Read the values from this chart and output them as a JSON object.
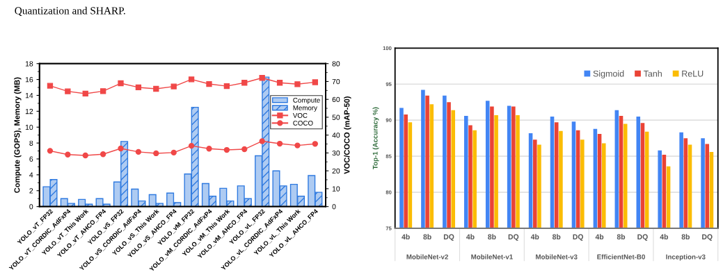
{
  "chart_data": [
    {
      "type": "bar",
      "ylabel": "Compute (GOPS), Memory (MB)",
      "y2label": "VOC/COCO (mAP-50)",
      "annotations": [
        "Quantization and SHARP."
      ],
      "categories": [
        "YOLO_vT_FP32",
        "YOLO_vT_CORDIC_AdFxP4",
        "YOLO_vT_This Work",
        "YOLO_vT_AHCO_FP4",
        "YOLO_vS_FP32",
        "YOLO_vS_CORDIC_AdFxP4",
        "YOLO_vS_This Work",
        "YOLO_vS_AHCO_FP4",
        "YOLO_vM_FP32",
        "YOLO_vM_CORDIC_AdFxP4",
        "YOLO_vM_This Work",
        "YOLO_vM_AHCO_FP4",
        "YOLO_vL_FP32",
        "YOLO_vL_CORDIC_AdFxP4",
        "YOLO_vL_This Work",
        "YOLO_vL_AHCO_FP4"
      ],
      "series": [
        {
          "name": "Compute",
          "type": "bar",
          "color": "#aecbf2",
          "values": [
            2.5,
            1.0,
            0.9,
            1.0,
            3.1,
            2.2,
            1.5,
            1.7,
            4.1,
            2.9,
            2.3,
            2.6,
            6.4,
            4.5,
            2.8,
            3.9
          ]
        },
        {
          "name": "Memory",
          "type": "bar",
          "color": "#2f7ae0",
          "values": [
            3.4,
            0.4,
            0.3,
            0.3,
            8.2,
            0.7,
            0.4,
            0.5,
            12.5,
            1.3,
            0.7,
            1.0,
            16.3,
            2.6,
            1.3,
            1.8
          ]
        },
        {
          "name": "VOC",
          "type": "line",
          "axis": "y2",
          "marker": "square",
          "color": "#f04848",
          "values": [
            67.6,
            64.5,
            63.2,
            64.6,
            69.0,
            66.7,
            65.9,
            67.2,
            71.2,
            68.6,
            67.4,
            69.3,
            72.0,
            69.3,
            68.5,
            69.6
          ]
        },
        {
          "name": "COCO",
          "type": "line",
          "axis": "y2",
          "marker": "circle",
          "color": "#f04848",
          "values": [
            31.2,
            29.1,
            28.6,
            29.3,
            32.5,
            30.6,
            29.8,
            30.2,
            34.0,
            32.4,
            31.7,
            32.1,
            36.6,
            35.2,
            34.2,
            35.1
          ]
        }
      ],
      "ylim": [
        0,
        18
      ],
      "yticks": [
        0,
        2,
        4,
        6,
        8,
        10,
        12,
        14,
        16,
        18
      ],
      "y2lim": [
        0,
        80
      ],
      "y2ticks": [
        0,
        10,
        20,
        30,
        40,
        50,
        60,
        70,
        80
      ],
      "legend": "right",
      "grid": false
    },
    {
      "type": "bar",
      "ylabel": "Top-1 (Accuracy %)",
      "categories": [
        "4b",
        "8b",
        "DQ",
        "4b",
        "8b",
        "DQ",
        "4b",
        "8b",
        "DQ",
        "4b",
        "8b",
        "DQ",
        "4b",
        "8b",
        "DQ"
      ],
      "annotations": [
        "MobileNet-v2",
        "MobileNet-v1",
        "MobileNet-v3",
        "EfficientNet-B0",
        "Inception-v3"
      ],
      "series": [
        {
          "name": "Sigmoid",
          "color": "#4285f4",
          "values": [
            91.7,
            94.2,
            93.4,
            90.6,
            92.7,
            92.0,
            88.2,
            90.5,
            89.8,
            88.8,
            91.4,
            90.5,
            85.8,
            88.3,
            87.5
          ]
        },
        {
          "name": "Tanh",
          "color": "#ea4335",
          "values": [
            90.8,
            93.4,
            92.5,
            89.3,
            91.9,
            91.9,
            87.3,
            89.7,
            88.6,
            88.1,
            90.6,
            89.6,
            85.2,
            87.5,
            86.7
          ]
        },
        {
          "name": "ReLU",
          "color": "#fbbc04",
          "values": [
            89.7,
            92.2,
            91.4,
            88.6,
            90.7,
            90.7,
            86.6,
            88.5,
            87.3,
            86.8,
            89.5,
            88.4,
            83.6,
            86.6,
            85.6
          ]
        }
      ],
      "ylim": [
        75,
        100
      ],
      "yticks": [
        75,
        80,
        85,
        90,
        95,
        100
      ],
      "legend": "top right",
      "grid": "y"
    }
  ]
}
